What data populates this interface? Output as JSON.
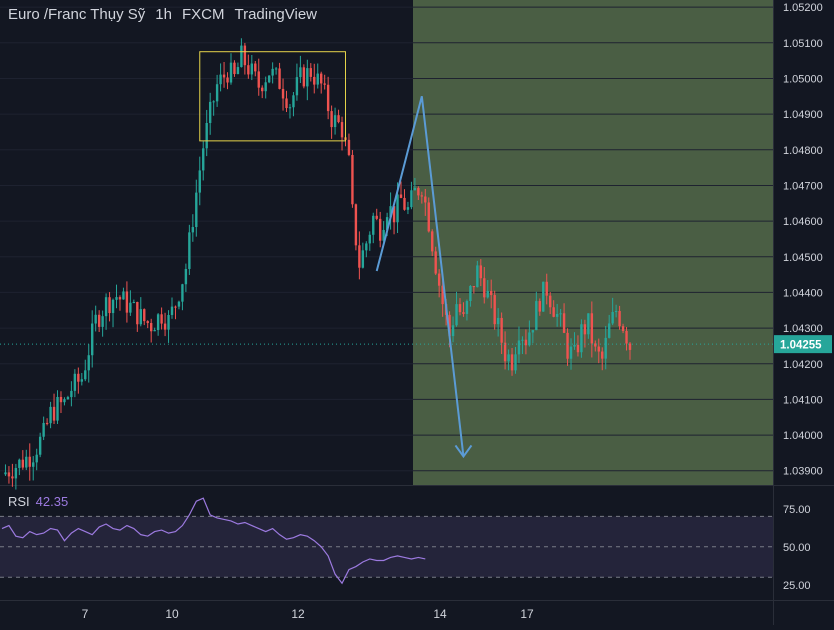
{
  "header": {
    "symbol": "Euro /Franc Thụy Sỹ",
    "interval": "1h",
    "exchange": "FXCM",
    "brand": "TradingView"
  },
  "colors": {
    "background": "#131722",
    "up": "#26a69a",
    "down": "#ef5350",
    "future_zone": "#4a5e44",
    "box": "#e6d44a",
    "arrow": "#5b9bd5",
    "rsi": "#9c7ae0",
    "price_tag": "#26a69a"
  },
  "chart_data": [
    {
      "type": "candlestick",
      "title": "Euro /Franc Thụy Sỹ · 1h · FXCM",
      "x_ticks": [
        "7",
        "10",
        "12",
        "14",
        "17"
      ],
      "y_ticks": [
        "1.05200",
        "1.05100",
        "1.05000",
        "1.04900",
        "1.04800",
        "1.04700",
        "1.04600",
        "1.04500",
        "1.04400",
        "1.04300",
        "1.04200",
        "1.04100",
        "1.04000",
        "1.03900"
      ],
      "ylim": [
        1.0386,
        1.0522
      ],
      "last_price": "1.04255",
      "close_path": [
        [
          0,
          1.0389
        ],
        [
          5,
          1.0392
        ],
        [
          9,
          1.0395
        ],
        [
          12,
          1.04
        ],
        [
          14,
          1.0406
        ],
        [
          16,
          1.0408
        ],
        [
          18,
          1.0409
        ],
        [
          20,
          1.0413
        ],
        [
          23,
          1.0416
        ],
        [
          25,
          1.0424
        ],
        [
          27,
          1.0432
        ],
        [
          30,
          1.0437
        ],
        [
          33,
          1.0439
        ],
        [
          37,
          1.0436
        ],
        [
          41,
          1.0432
        ],
        [
          43,
          1.0431
        ],
        [
          46,
          1.0434
        ],
        [
          48,
          1.0432
        ],
        [
          50,
          1.0437
        ],
        [
          53,
          1.0447
        ],
        [
          56,
          1.0468
        ],
        [
          58,
          1.0481
        ],
        [
          60,
          1.049
        ],
        [
          62,
          1.0498
        ],
        [
          65,
          1.0502
        ],
        [
          67,
          1.05
        ],
        [
          69,
          1.0506
        ],
        [
          71,
          1.0503
        ],
        [
          74,
          1.0498
        ],
        [
          77,
          1.0502
        ],
        [
          80,
          1.0499
        ],
        [
          83,
          1.0493
        ],
        [
          86,
          1.05
        ],
        [
          89,
          1.0502
        ],
        [
          92,
          1.0498
        ],
        [
          95,
          1.0489
        ],
        [
          98,
          1.0486
        ],
        [
          100,
          1.0476
        ],
        [
          101,
          1.0462
        ],
        [
          103,
          1.0448
        ],
        [
          105,
          1.0454
        ],
        [
          107,
          1.0461
        ],
        [
          109,
          1.0458
        ],
        [
          111,
          1.0464
        ],
        [
          113,
          1.0462
        ],
        [
          115,
          1.0466
        ],
        [
          117,
          1.0463
        ],
        [
          119,
          1.0468
        ],
        [
          121,
          1.047
        ],
        [
          123,
          1.046
        ],
        [
          125,
          1.0448
        ],
        [
          127,
          1.0437
        ],
        [
          129,
          1.0428
        ],
        [
          131,
          1.0437
        ],
        [
          133,
          1.0432
        ],
        [
          135,
          1.044
        ],
        [
          137,
          1.0446
        ],
        [
          139,
          1.0442
        ],
        [
          141,
          1.0436
        ],
        [
          143,
          1.043
        ],
        [
          145,
          1.0423
        ],
        [
          147,
          1.0421
        ],
        [
          149,
          1.043
        ],
        [
          151,
          1.0427
        ],
        [
          153,
          1.0432
        ],
        [
          155,
          1.0438
        ],
        [
          157,
          1.0441
        ],
        [
          159,
          1.0436
        ],
        [
          161,
          1.0431
        ],
        [
          163,
          1.0424
        ],
        [
          165,
          1.0422
        ],
        [
          167,
          1.0429
        ],
        [
          169,
          1.0431
        ],
        [
          171,
          1.0423
        ],
        [
          173,
          1.0421
        ],
        [
          175,
          1.043
        ],
        [
          177,
          1.0435
        ],
        [
          179,
          1.0431
        ],
        [
          181,
          1.0425
        ]
      ],
      "annotations": {
        "rectangle": {
          "price_top": 1.05075,
          "price_bottom": 1.04825
        },
        "arrow_path": [
          [
            1.0446,
            1.0476
          ],
          [
            1.0495,
            1.0394
          ]
        ]
      }
    },
    {
      "type": "line",
      "title": "RSI",
      "value_label": "42.35",
      "y_ticks": [
        "75.00",
        "50.00",
        "25.00"
      ],
      "ylim": [
        15,
        90
      ],
      "bands": {
        "upper": 70,
        "middle": 50,
        "lower": 30
      },
      "path": [
        [
          0,
          62
        ],
        [
          2,
          64
        ],
        [
          4,
          57
        ],
        [
          6,
          56
        ],
        [
          8,
          60
        ],
        [
          10,
          58
        ],
        [
          12,
          59
        ],
        [
          14,
          62
        ],
        [
          16,
          61
        ],
        [
          18,
          54
        ],
        [
          20,
          59
        ],
        [
          22,
          62
        ],
        [
          24,
          60
        ],
        [
          26,
          58
        ],
        [
          28,
          63
        ],
        [
          30,
          65
        ],
        [
          32,
          62
        ],
        [
          34,
          61
        ],
        [
          36,
          64
        ],
        [
          38,
          62
        ],
        [
          40,
          58
        ],
        [
          42,
          57
        ],
        [
          44,
          60
        ],
        [
          46,
          61
        ],
        [
          48,
          59
        ],
        [
          50,
          60
        ],
        [
          52,
          64
        ],
        [
          54,
          71
        ],
        [
          56,
          80
        ],
        [
          58,
          82
        ],
        [
          60,
          71
        ],
        [
          62,
          69
        ],
        [
          64,
          68
        ],
        [
          66,
          67
        ],
        [
          68,
          65
        ],
        [
          70,
          66
        ],
        [
          72,
          64
        ],
        [
          74,
          62
        ],
        [
          76,
          60
        ],
        [
          78,
          62
        ],
        [
          80,
          58
        ],
        [
          82,
          55
        ],
        [
          84,
          56
        ],
        [
          86,
          58
        ],
        [
          88,
          57
        ],
        [
          90,
          54
        ],
        [
          92,
          50
        ],
        [
          94,
          44
        ],
        [
          96,
          32
        ],
        [
          98,
          26
        ],
        [
          100,
          35
        ],
        [
          102,
          37
        ],
        [
          104,
          40
        ],
        [
          106,
          42
        ],
        [
          108,
          41
        ],
        [
          110,
          41
        ],
        [
          112,
          43
        ],
        [
          114,
          44
        ],
        [
          116,
          43
        ],
        [
          118,
          42
        ],
        [
          120,
          43
        ],
        [
          122,
          42
        ]
      ]
    }
  ]
}
